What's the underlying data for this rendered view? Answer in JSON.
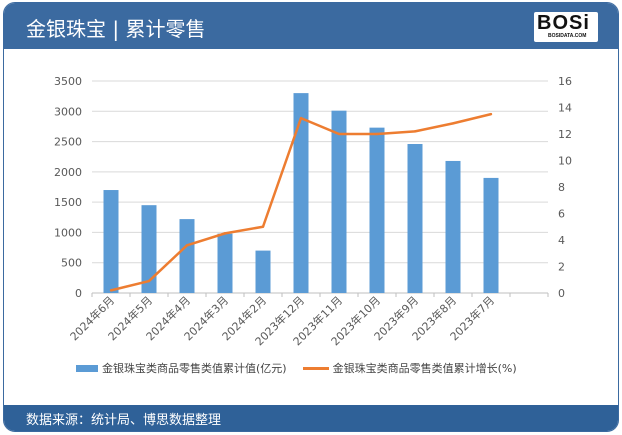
{
  "header": {
    "title": "金银珠宝 | 累计零售",
    "logo_text": "BOSI",
    "logo_sub": "BOSIDATA.COM"
  },
  "footer": {
    "source": "数据来源：统计局、博思数据整理"
  },
  "colors": {
    "header": "#3b6aa0",
    "bar": "#5b9bd5",
    "line": "#ed7d31"
  },
  "chart_data": {
    "type": "bar+line",
    "categories": [
      "2024年6月",
      "2024年5月",
      "2024年4月",
      "2024年3月",
      "2024年2月",
      "2023年12月",
      "2023年11月",
      "2023年10月",
      "2023年9月",
      "2023年8月",
      "2023年7月"
    ],
    "series": [
      {
        "name": "金银珠宝类商品零售类值累计值(亿元)",
        "type": "bar",
        "axis": "left",
        "values": [
          1700,
          1450,
          1220,
          980,
          700,
          3300,
          3010,
          2730,
          2460,
          2180,
          1900
        ]
      },
      {
        "name": "金银珠宝类商品零售类值累计增长(%)",
        "type": "line",
        "axis": "right",
        "values": [
          0.2,
          0.9,
          3.6,
          4.5,
          5.0,
          13.2,
          12.0,
          12.0,
          12.2,
          12.8,
          13.5
        ]
      }
    ],
    "left_axis": {
      "range": [
        0,
        3500
      ],
      "ticks": [
        0,
        500,
        1000,
        1500,
        2000,
        2500,
        3000,
        3500
      ]
    },
    "right_axis": {
      "range": [
        0,
        16
      ],
      "ticks": [
        0,
        2,
        4,
        6,
        8,
        10,
        12,
        14,
        16
      ]
    },
    "grid": true,
    "legend": "bottom"
  }
}
